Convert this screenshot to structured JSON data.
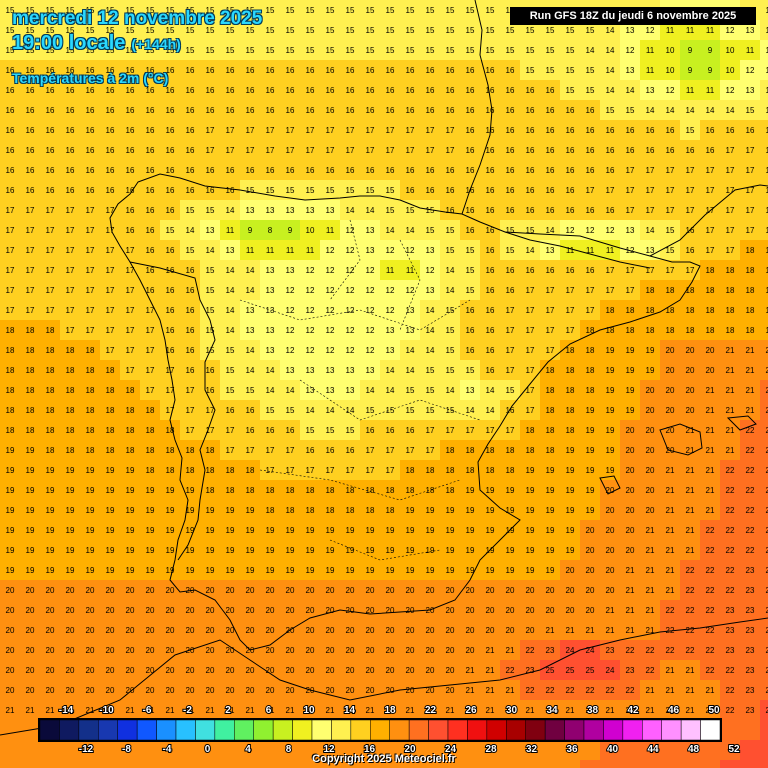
{
  "header": {
    "date": "mercredi 12 novembre 2025",
    "hour": "19:00 locale",
    "offset": "(+144h)",
    "parameter": "Températures à 2m (°C)"
  },
  "run": "Run GFS 18Z du jeudi 6 novembre 2025",
  "copyright": "Copyright 2025 Meteociel.fr",
  "legend": {
    "top_labels": [
      "-14",
      "-10",
      "-6",
      "-2",
      "2",
      "6",
      "10",
      "14",
      "18",
      "22",
      "26",
      "30",
      "34",
      "38",
      "42",
      "46",
      "50"
    ],
    "bottom_labels": [
      "-12",
      "-8",
      "-4",
      "0",
      "4",
      "8",
      "12",
      "16",
      "20",
      "24",
      "28",
      "32",
      "36",
      "40",
      "44",
      "48",
      "52"
    ],
    "colors": [
      "#0a0a3a",
      "#0f1a60",
      "#13308a",
      "#1838b0",
      "#1030e0",
      "#1058ff",
      "#1a90ff",
      "#28c0ff",
      "#40e0e0",
      "#40f0a0",
      "#60f060",
      "#90f030",
      "#c8f020",
      "#f0f020",
      "#ffff70",
      "#fff050",
      "#ffd020",
      "#ffb000",
      "#ff9010",
      "#ff7020",
      "#ff5030",
      "#ff3020",
      "#f01010",
      "#d00000",
      "#a80000",
      "#800010",
      "#700040",
      "#900070",
      "#b000a0",
      "#d000d0",
      "#f020f0",
      "#ff60ff",
      "#ff90ff",
      "#ffc0ff",
      "#ffffff"
    ]
  },
  "map": {
    "region": "Péninsule Ibérique",
    "country_outline_color": "#000000",
    "temperature_range_c": [
      3,
      25
    ]
  }
}
